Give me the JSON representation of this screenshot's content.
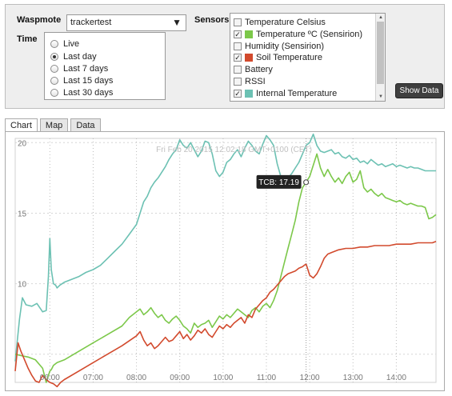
{
  "controls": {
    "waspmote_label": "Waspmote",
    "waspmote_value": "trackertest",
    "time_label": "Time",
    "time_options": [
      {
        "label": "Live",
        "selected": false
      },
      {
        "label": "Last day",
        "selected": true
      },
      {
        "label": "Last 7 days",
        "selected": false
      },
      {
        "label": "Last 15 days",
        "selected": false
      },
      {
        "label": "Last 30 days",
        "selected": false
      }
    ],
    "sensors_label": "Sensors",
    "sensors": [
      {
        "label": "Temperature Celsius",
        "checked": false,
        "color": ""
      },
      {
        "label": "Temperature ºC (Sensirion)",
        "checked": true,
        "color": "#7cc84a"
      },
      {
        "label": "Humidity (Sensirion)",
        "checked": false,
        "color": ""
      },
      {
        "label": "Soil Temperature",
        "checked": true,
        "color": "#d24a2d"
      },
      {
        "label": "Battery",
        "checked": false,
        "color": ""
      },
      {
        "label": "RSSI",
        "checked": false,
        "color": ""
      },
      {
        "label": "Internal Temperature",
        "checked": true,
        "color": "#6cc1b3"
      }
    ],
    "show_button": "Show Data"
  },
  "tabs": [
    {
      "label": "Chart",
      "active": true
    },
    {
      "label": "Map",
      "active": false
    },
    {
      "label": "Data",
      "active": false
    }
  ],
  "tooltip": {
    "header": "Fri Feb 20 2015 12:02:18 GMT+0100 (CET)",
    "value": "TCB: 17.19"
  },
  "colors": {
    "internal": "#6cc1b3",
    "sensirion": "#7cc84a",
    "soil": "#d24a2d"
  },
  "chart_data": {
    "type": "line",
    "x_ticks": [
      "06:00",
      "07:00",
      "08:00",
      "09:00",
      "10:00",
      "11:00",
      "12:00",
      "13:00",
      "14:00"
    ],
    "y_ticks": [
      "20",
      "15",
      "10"
    ],
    "ylim": [
      3,
      20.3
    ],
    "xlim": [
      "05:12",
      "14:55"
    ],
    "grid": true,
    "series": [
      {
        "key": "internal",
        "x": [
          "05:12",
          "05:18",
          "05:22",
          "05:27",
          "05:35",
          "05:42",
          "05:50",
          "05:55",
          "05:58",
          "06:00",
          "06:02",
          "06:05",
          "06:08",
          "06:10",
          "06:14",
          "06:20",
          "06:30",
          "06:40",
          "06:50",
          "07:00",
          "07:10",
          "07:20",
          "07:30",
          "07:40",
          "07:50",
          "08:00",
          "08:05",
          "08:10",
          "08:15",
          "08:20",
          "08:25",
          "08:30",
          "08:35",
          "08:40",
          "08:45",
          "08:50",
          "08:55",
          "09:00",
          "09:05",
          "09:10",
          "09:15",
          "09:20",
          "09:25",
          "09:30",
          "09:35",
          "09:40",
          "09:45",
          "09:50",
          "09:55",
          "10:00",
          "10:05",
          "10:10",
          "10:15",
          "10:20",
          "10:25",
          "10:30",
          "10:35",
          "10:40",
          "10:45",
          "10:50",
          "10:55",
          "11:00",
          "11:05",
          "11:10",
          "11:15",
          "11:20",
          "11:25",
          "11:30",
          "11:35",
          "11:40",
          "11:45",
          "11:50",
          "11:55",
          "12:00",
          "12:05",
          "12:10",
          "12:15",
          "12:20",
          "12:25",
          "12:30",
          "12:35",
          "12:40",
          "12:45",
          "12:50",
          "12:55",
          "13:00",
          "13:05",
          "13:10",
          "13:15",
          "13:20",
          "13:25",
          "13:30",
          "13:35",
          "13:40",
          "13:45",
          "13:50",
          "13:55",
          "14:00",
          "14:05",
          "14:10",
          "14:15",
          "14:20",
          "14:25",
          "14:30",
          "14:35",
          "14:40",
          "14:45",
          "14:50",
          "14:55"
        ],
        "y": [
          4.5,
          7.5,
          9.0,
          8.5,
          8.4,
          8.6,
          8.0,
          8.1,
          10.5,
          13.2,
          11.0,
          10.0,
          9.9,
          9.7,
          9.9,
          10.1,
          10.3,
          10.5,
          10.8,
          11.0,
          11.3,
          11.8,
          12.3,
          12.8,
          13.5,
          14.2,
          15.0,
          15.8,
          16.2,
          16.8,
          17.2,
          17.5,
          17.9,
          18.3,
          18.8,
          19.2,
          19.5,
          20.2,
          19.8,
          19.6,
          20.0,
          19.5,
          19.0,
          19.4,
          20.1,
          20.0,
          19.2,
          18.0,
          17.6,
          17.9,
          18.6,
          18.8,
          19.2,
          19.5,
          19.0,
          19.6,
          20.1,
          19.8,
          19.4,
          19.2,
          19.9,
          20.5,
          20.2,
          19.8,
          18.5,
          17.6,
          17.3,
          17.5,
          17.8,
          18.2,
          18.6,
          19.2,
          19.8,
          20.0,
          20.6,
          19.8,
          19.4,
          19.3,
          19.4,
          19.5,
          19.2,
          19.3,
          19.0,
          18.9,
          19.1,
          18.8,
          18.9,
          18.6,
          18.7,
          18.5,
          18.8,
          18.6,
          18.4,
          18.5,
          18.3,
          18.4,
          18.5,
          18.3,
          18.4,
          18.3,
          18.2,
          18.3,
          18.2,
          18.2,
          18.1,
          18.0,
          18.0,
          18.0,
          18.0
        ]
      },
      {
        "key": "sensirion",
        "x": [
          "05:12",
          "05:20",
          "05:30",
          "05:40",
          "05:50",
          "05:55",
          "05:58",
          "06:00",
          "06:02",
          "06:05",
          "06:10",
          "06:20",
          "06:40",
          "07:00",
          "07:20",
          "07:40",
          "07:50",
          "08:00",
          "08:05",
          "08:10",
          "08:15",
          "08:20",
          "08:25",
          "08:30",
          "08:35",
          "08:40",
          "08:45",
          "08:50",
          "08:55",
          "09:00",
          "09:05",
          "09:10",
          "09:15",
          "09:20",
          "09:25",
          "09:30",
          "09:35",
          "09:40",
          "09:45",
          "09:50",
          "09:55",
          "10:00",
          "10:05",
          "10:10",
          "10:15",
          "10:20",
          "10:25",
          "10:30",
          "10:35",
          "10:40",
          "10:45",
          "10:50",
          "10:55",
          "11:00",
          "11:05",
          "11:10",
          "11:15",
          "11:20",
          "11:25",
          "11:30",
          "11:35",
          "11:40",
          "11:45",
          "11:50",
          "11:55",
          "12:00",
          "12:05",
          "12:10",
          "12:15",
          "12:20",
          "12:25",
          "12:30",
          "12:35",
          "12:40",
          "12:45",
          "12:50",
          "12:55",
          "13:00",
          "13:05",
          "13:10",
          "13:15",
          "13:20",
          "13:25",
          "13:30",
          "13:35",
          "13:40",
          "13:45",
          "13:50",
          "13:55",
          "14:00",
          "14:05",
          "14:10",
          "14:15",
          "14:20",
          "14:25",
          "14:30",
          "14:35",
          "14:40",
          "14:45",
          "14:50",
          "14:55"
        ],
        "y": [
          5.0,
          4.9,
          4.8,
          4.6,
          4.0,
          3.0,
          3.5,
          3.8,
          3.9,
          4.2,
          4.4,
          4.6,
          5.2,
          5.8,
          6.4,
          7.0,
          7.6,
          8.0,
          8.2,
          7.8,
          8.0,
          8.3,
          7.9,
          7.6,
          7.8,
          7.4,
          7.2,
          7.5,
          7.7,
          7.4,
          7.0,
          6.8,
          6.5,
          7.2,
          6.9,
          7.1,
          7.2,
          7.4,
          6.9,
          7.3,
          7.7,
          7.5,
          7.8,
          7.6,
          7.9,
          8.2,
          8.0,
          7.8,
          7.6,
          8.1,
          8.3,
          8.0,
          8.4,
          8.6,
          8.3,
          8.8,
          9.5,
          10.5,
          11.5,
          12.5,
          13.5,
          14.5,
          15.8,
          16.8,
          17.19,
          17.6,
          18.4,
          19.2,
          18.2,
          17.6,
          18.1,
          17.6,
          17.2,
          17.5,
          17.1,
          17.6,
          17.9,
          17.2,
          17.4,
          18.0,
          16.8,
          16.5,
          16.7,
          16.4,
          16.2,
          16.4,
          16.1,
          16.0,
          15.9,
          15.8,
          15.9,
          15.7,
          15.6,
          15.7,
          15.6,
          15.5,
          15.5,
          15.4,
          14.6,
          14.7,
          14.9
        ]
      },
      {
        "key": "soil",
        "x": [
          "05:12",
          "05:16",
          "05:20",
          "05:25",
          "05:30",
          "05:35",
          "05:40",
          "05:45",
          "05:50",
          "05:55",
          "06:00",
          "06:05",
          "06:10",
          "06:15",
          "06:20",
          "06:40",
          "07:00",
          "07:20",
          "07:40",
          "08:00",
          "08:05",
          "08:10",
          "08:15",
          "08:20",
          "08:25",
          "08:30",
          "08:35",
          "08:40",
          "08:45",
          "08:50",
          "08:55",
          "09:00",
          "09:05",
          "09:10",
          "09:15",
          "09:20",
          "09:25",
          "09:30",
          "09:35",
          "09:40",
          "09:45",
          "09:50",
          "09:55",
          "10:00",
          "10:05",
          "10:10",
          "10:15",
          "10:20",
          "10:25",
          "10:30",
          "10:35",
          "10:40",
          "10:45",
          "10:50",
          "10:55",
          "11:00",
          "11:05",
          "11:10",
          "11:15",
          "11:20",
          "11:25",
          "11:30",
          "11:35",
          "11:40",
          "11:45",
          "11:50",
          "11:55",
          "12:00",
          "12:05",
          "12:10",
          "12:15",
          "12:20",
          "12:25",
          "12:30",
          "12:40",
          "12:50",
          "13:00",
          "13:10",
          "13:20",
          "13:30",
          "13:40",
          "13:50",
          "14:00",
          "14:10",
          "14:20",
          "14:30",
          "14:40",
          "14:50",
          "14:55"
        ],
        "y": [
          3.8,
          5.8,
          5.2,
          4.6,
          4.0,
          3.5,
          3.1,
          3.0,
          3.5,
          3.2,
          3.0,
          2.9,
          2.7,
          3.0,
          3.2,
          3.8,
          4.4,
          5.0,
          5.6,
          6.3,
          6.6,
          6.0,
          5.6,
          5.8,
          5.4,
          5.6,
          5.9,
          6.2,
          5.9,
          6.0,
          6.3,
          6.6,
          6.1,
          6.4,
          6.0,
          6.3,
          6.7,
          6.5,
          6.8,
          6.4,
          6.2,
          6.6,
          7.0,
          6.8,
          7.1,
          6.9,
          7.2,
          7.4,
          7.6,
          7.2,
          7.8,
          7.6,
          8.2,
          8.5,
          8.8,
          9.0,
          9.4,
          9.6,
          9.9,
          10.2,
          10.5,
          10.7,
          10.8,
          10.9,
          11.1,
          11.2,
          11.4,
          10.6,
          10.4,
          10.7,
          11.2,
          11.8,
          12.1,
          12.2,
          12.4,
          12.5,
          12.5,
          12.6,
          12.6,
          12.7,
          12.7,
          12.7,
          12.8,
          12.8,
          12.8,
          12.9,
          12.9,
          12.9,
          13.0
        ]
      }
    ]
  }
}
